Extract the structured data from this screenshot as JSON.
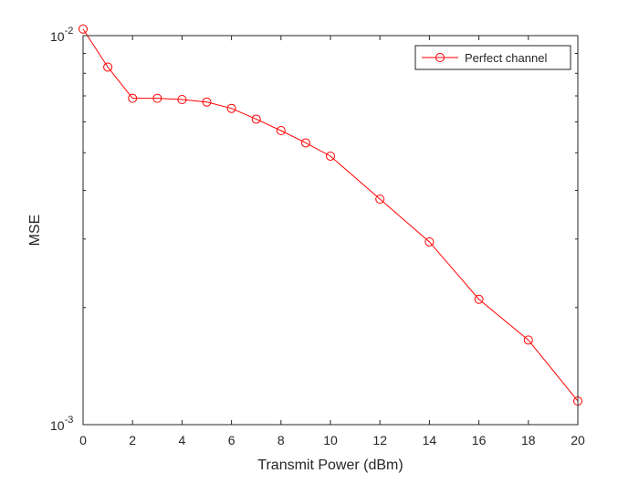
{
  "chart_data": {
    "type": "line",
    "title": "",
    "xlabel": "Transmit Power (dBm)",
    "ylabel": "MSE",
    "xlim": [
      0,
      20
    ],
    "ylim": [
      0.001,
      0.01
    ],
    "yscale": "log",
    "x_ticks": [
      0,
      2,
      4,
      6,
      8,
      10,
      12,
      14,
      16,
      18,
      20
    ],
    "x_tick_labels": [
      "0",
      "2",
      "4",
      "6",
      "8",
      "10",
      "12",
      "14",
      "16",
      "18",
      "20"
    ],
    "y_tick_labels": [
      {
        "value": 0.001,
        "base": "10",
        "exponent": "-3"
      },
      {
        "value": 0.01,
        "base": "10",
        "exponent": "-2"
      }
    ],
    "grid": false,
    "legend_position": "top-right",
    "series": [
      {
        "name": "Perfect channel",
        "color": "#ff0000",
        "marker": "circle",
        "x": [
          0,
          1,
          2,
          3,
          4,
          5,
          6,
          7,
          8,
          9,
          10,
          12,
          14,
          16,
          18,
          20
        ],
        "values": [
          0.0104,
          0.0083,
          0.0069,
          0.0069,
          0.00685,
          0.00675,
          0.0065,
          0.0061,
          0.0057,
          0.0053,
          0.0049,
          0.0038,
          0.00295,
          0.0021,
          0.00165,
          0.00115
        ]
      }
    ]
  }
}
